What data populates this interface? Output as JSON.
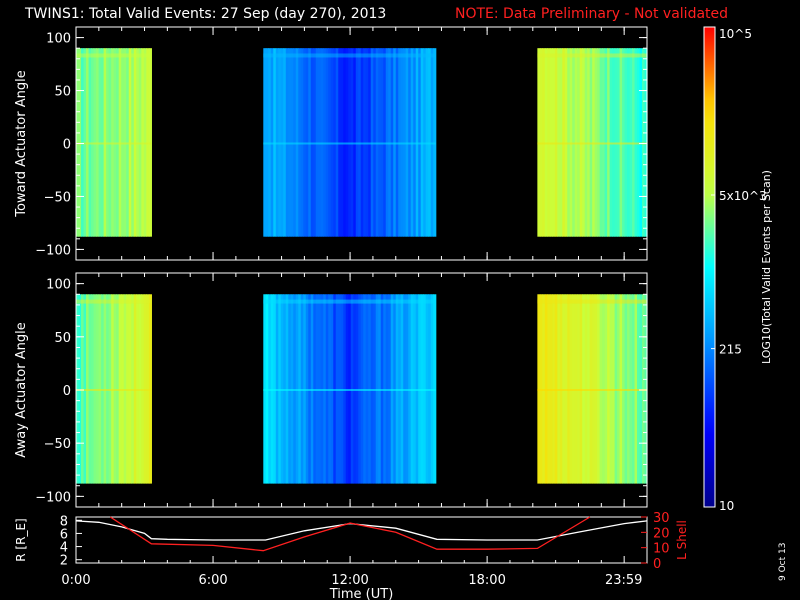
{
  "header": {
    "title": "TWINS1: Total Valid Events: 27 Sep (day 270), 2013",
    "note": "NOTE: Data Preliminary - Not validated"
  },
  "stamp": "9 Oct 13",
  "colors": {
    "background": "#000000",
    "axes": "#ffffff",
    "note": "#ff2020",
    "radius_line": "#ffffff",
    "lshell_line": "#ff2020"
  },
  "chart_data": [
    {
      "type": "heatmap",
      "panel": "toward",
      "ylabel": "Toward Actuator Angle",
      "ylim": [
        -110,
        110
      ],
      "yticks": [
        100,
        50,
        0,
        -50,
        -100
      ],
      "xlim_hours": [
        0,
        25
      ],
      "data_yrange": [
        -88,
        90
      ],
      "segments": [
        {
          "start_hours": 0.0,
          "end_hours": 3.3,
          "level_min": 0.58,
          "level_max": 0.66,
          "trend": "left-to-right rising"
        },
        {
          "start_hours": 8.2,
          "end_hours": 15.75,
          "level_min": 0.2,
          "level_max": 0.4,
          "trend": "dips near center"
        },
        {
          "start_hours": 20.2,
          "end_hours": 25.0,
          "level_min": 0.52,
          "level_max": 0.72,
          "trend": "left-to-right falling"
        }
      ]
    },
    {
      "type": "heatmap",
      "panel": "away",
      "ylabel": "Away Actuator Angle",
      "ylim": [
        -110,
        110
      ],
      "yticks": [
        100,
        50,
        0,
        -50,
        -100
      ],
      "xlim_hours": [
        0,
        25
      ],
      "data_yrange": [
        -88,
        90
      ],
      "segments": [
        {
          "start_hours": 0.0,
          "end_hours": 3.3,
          "level_min": 0.56,
          "level_max": 0.72,
          "trend": "left-to-right rising"
        },
        {
          "start_hours": 8.2,
          "end_hours": 15.75,
          "level_min": 0.22,
          "level_max": 0.45,
          "trend": "dips near center"
        },
        {
          "start_hours": 20.2,
          "end_hours": 25.0,
          "level_min": 0.58,
          "level_max": 0.78,
          "trend": "left-to-right falling"
        }
      ]
    },
    {
      "type": "line",
      "panel": "orbit",
      "xlabel": "Time (UT)",
      "xticks": [
        {
          "value": 0,
          "label": "0:00"
        },
        {
          "value": 6,
          "label": "6:00"
        },
        {
          "value": 12,
          "label": "12:00"
        },
        {
          "value": 18,
          "label": "18:00"
        },
        {
          "value": 23.98,
          "label": "23:59"
        }
      ],
      "xlim": [
        0,
        25
      ],
      "left_axis": {
        "label": "R [R_E]",
        "ylim": [
          1.5,
          8.5
        ],
        "ticks": [
          2,
          4,
          6,
          8
        ]
      },
      "right_axis": {
        "label": "L Shell",
        "ylim": [
          0,
          30
        ],
        "ticks": [
          0,
          10,
          20,
          30
        ]
      },
      "series": [
        {
          "axis": "left",
          "x": [
            0,
            1,
            2,
            3,
            3.3,
            4,
            6,
            8,
            8.3,
            10,
            12,
            14,
            15.8,
            18,
            20.2,
            22,
            24,
            25
          ],
          "y": [
            7.9,
            7.7,
            7.0,
            6.0,
            5.2,
            5.1,
            5.0,
            5.0,
            5.0,
            6.4,
            7.5,
            6.8,
            5.1,
            5.0,
            5.0,
            6.2,
            7.5,
            7.9
          ]
        },
        {
          "axis": "right",
          "x": [
            1.5,
            3.3,
            6,
            8.2,
            10,
            12,
            14,
            15.8,
            18,
            20.2,
            22.5
          ],
          "y": [
            30,
            12.5,
            11.5,
            8.0,
            17.0,
            26.0,
            20.0,
            9.0,
            9.0,
            9.5,
            30.0
          ]
        }
      ]
    },
    {
      "type": "colorbar",
      "label": "LOG10(Total Valid Events per Scan)",
      "ticks": [
        {
          "value": "10^5",
          "frac": 1.0
        },
        {
          "value": "5x10^3",
          "frac": 0.65
        },
        {
          "value": "215",
          "frac": 0.33
        },
        {
          "value": "10",
          "frac": 0.0
        }
      ]
    }
  ]
}
